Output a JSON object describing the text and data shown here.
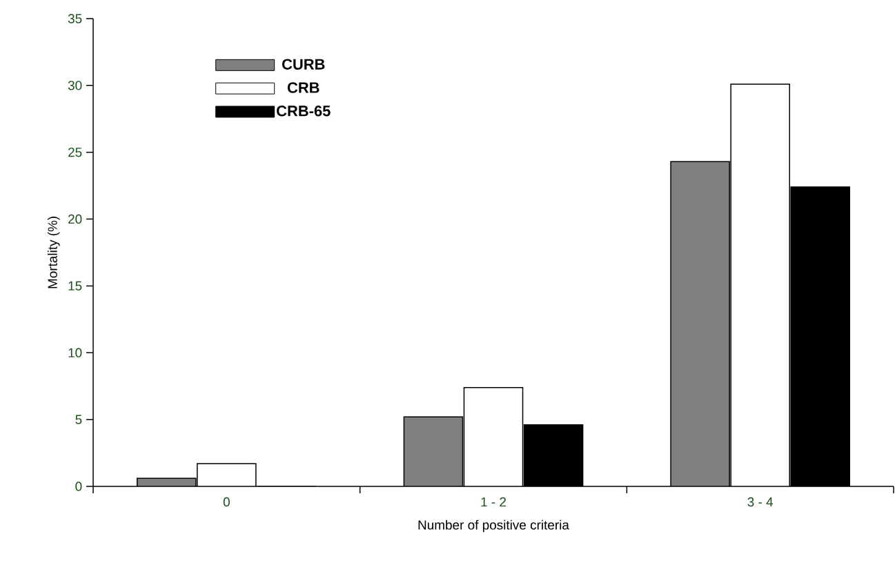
{
  "chart_data": {
    "type": "bar",
    "xlabel": "Number of positive criteria",
    "ylabel": "Mortality (%)",
    "categories": [
      "0",
      "1 - 2",
      "3 - 4"
    ],
    "series": [
      {
        "name": "CURB",
        "color": "#7f7f7f",
        "values": [
          0.6,
          5.2,
          24.3
        ]
      },
      {
        "name": "CRB",
        "color": "#ffffff",
        "values": [
          1.7,
          7.4,
          30.1
        ]
      },
      {
        "name": "CRB-65",
        "color": "#000000",
        "values": [
          0,
          4.6,
          22.4
        ]
      }
    ],
    "ylim": [
      0,
      35
    ],
    "yticks": [
      0,
      5,
      10,
      15,
      20,
      25,
      30,
      35
    ],
    "legend": "top left",
    "grid": false
  }
}
